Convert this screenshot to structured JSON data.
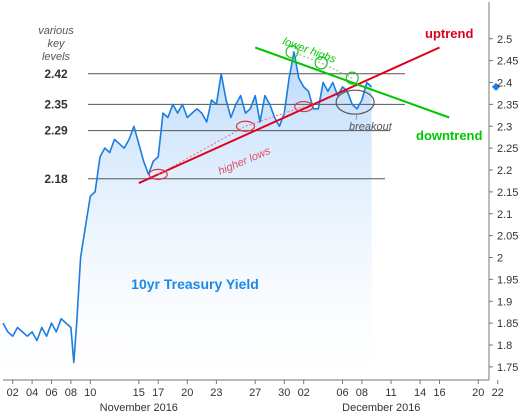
{
  "chart_data": {
    "type": "line",
    "title": "10yr Treasury Yield",
    "ylim": [
      1.72,
      2.52
    ],
    "yticks": [
      1.75,
      1.8,
      1.85,
      1.9,
      1.95,
      2,
      2.05,
      2.1,
      2.15,
      2.2,
      2.25,
      2.3,
      2.35,
      2.4,
      2.45,
      2.5
    ],
    "ytick_labels": [
      "1.75",
      "1.8",
      "1.85",
      "1.9",
      "1.95",
      "2",
      "2.05",
      "2.1",
      "2.15",
      "2.2",
      "2.25",
      "2.3",
      "2.35",
      "2.4",
      "2.45",
      "2.5"
    ],
    "xticks": [
      {
        "label": "02",
        "day": 2
      },
      {
        "label": "04",
        "day": 4
      },
      {
        "label": "06",
        "day": 6
      },
      {
        "label": "08",
        "day": 8
      },
      {
        "label": "10",
        "day": 10
      },
      {
        "label": "15",
        "day": 15
      },
      {
        "label": "17",
        "day": 17
      },
      {
        "label": "20",
        "day": 20
      },
      {
        "label": "23",
        "day": 23
      },
      {
        "label": "27",
        "day": 27
      },
      {
        "label": "30",
        "day": 30
      },
      {
        "label": "02",
        "day": 32
      },
      {
        "label": "06",
        "day": 36
      },
      {
        "label": "08",
        "day": 38
      },
      {
        "label": "11",
        "day": 41
      },
      {
        "label": "14",
        "day": 44
      },
      {
        "label": "16",
        "day": 46
      },
      {
        "label": "20",
        "day": 50
      },
      {
        "label": "22",
        "day": 52
      }
    ],
    "months": [
      {
        "label": "November 2016",
        "day": 15
      },
      {
        "label": "December 2016",
        "day": 40
      }
    ],
    "series": [
      {
        "color": "#1a7de0",
        "x": [
          1,
          1.5,
          2,
          2.5,
          3,
          3.5,
          4,
          4.5,
          5,
          5.5,
          6,
          6.5,
          7,
          7.5,
          8,
          8.3,
          8.6,
          9,
          9.5,
          10,
          10.5,
          11,
          11.5,
          12,
          12.5,
          13,
          13.5,
          14,
          14.5,
          15,
          15.5,
          16,
          16.5,
          17,
          17.5,
          18,
          18.5,
          19,
          19.5,
          20,
          20.5,
          21,
          21.5,
          22,
          22.5,
          23,
          23.5,
          24,
          24.5,
          25,
          25.5,
          26,
          26.5,
          27,
          27.5,
          28,
          28.5,
          29,
          29.5,
          30,
          30.5,
          31,
          31.5,
          32,
          32.5,
          33,
          33.5,
          34,
          34.5,
          35,
          35.5,
          36,
          36.5,
          37,
          37.5,
          38,
          38.5,
          39
        ],
        "y": [
          1.85,
          1.83,
          1.82,
          1.84,
          1.83,
          1.82,
          1.83,
          1.81,
          1.84,
          1.82,
          1.85,
          1.83,
          1.86,
          1.85,
          1.84,
          1.76,
          1.85,
          2.0,
          2.07,
          2.14,
          2.15,
          2.23,
          2.25,
          2.24,
          2.27,
          2.26,
          2.25,
          2.27,
          2.3,
          2.26,
          2.22,
          2.19,
          2.22,
          2.23,
          2.33,
          2.32,
          2.35,
          2.33,
          2.35,
          2.32,
          2.33,
          2.34,
          2.33,
          2.31,
          2.36,
          2.35,
          2.42,
          2.36,
          2.32,
          2.35,
          2.37,
          2.33,
          2.34,
          2.37,
          2.31,
          2.37,
          2.35,
          2.32,
          2.3,
          2.33,
          2.41,
          2.47,
          2.41,
          2.39,
          2.38,
          2.34,
          2.34,
          2.4,
          2.38,
          2.4,
          2.37,
          2.39,
          2.38,
          2.35,
          2.34,
          2.36,
          2.4,
          2.39
        ]
      }
    ],
    "levels": {
      "header": "various\nkey\nlevels",
      "items": [
        {
          "label": "2.42",
          "value": 2.42
        },
        {
          "label": "2.35",
          "value": 2.35
        },
        {
          "label": "2.29",
          "value": 2.29
        },
        {
          "label": "2.18",
          "value": 2.18
        }
      ]
    },
    "annotations": {
      "uptrend": "uptrend",
      "downtrend": "downtrend",
      "lower_highs": "lower highs",
      "higher_lows": "higher lows",
      "breakout": "breakout"
    },
    "colors": {
      "uptrend": "#e0001b",
      "downtrend": "#00c800",
      "line": "#1a7de0",
      "fill_top": "#b6d7fb",
      "fill_bottom": "#ffffff",
      "level_lines": "#555555",
      "current_marker": "#1a7de0"
    },
    "grid": false
  }
}
